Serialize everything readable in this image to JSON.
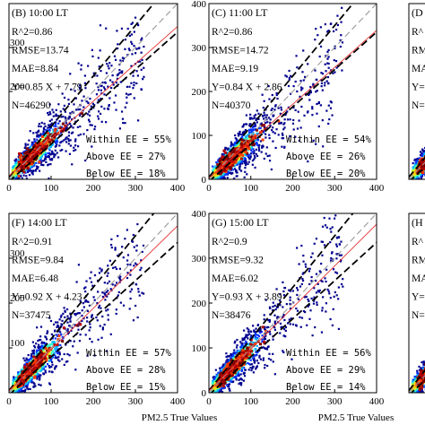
{
  "figure": {
    "bottom_xlabel": "PM2.5 True Values",
    "ee_colors": {
      "one_to_one": "#999999",
      "ee_lines": "#000000",
      "fit_line": "#e63232"
    },
    "density_colors": [
      "#00008f",
      "#0030ff",
      "#00b4ff",
      "#30ffcf",
      "#c8ff38",
      "#ffc800",
      "#ff3c00",
      "#b40000",
      "#7a0000"
    ]
  },
  "chart_data": [
    {
      "type": "scatter",
      "panel": "B",
      "title": "(B) 10:00 LT",
      "xlim": [
        0,
        400
      ],
      "ylim": [
        0,
        400
      ],
      "x_ticks": [
        "0",
        "100",
        "200",
        "300",
        "400"
      ],
      "y_ticks": [
        "200",
        "300"
      ],
      "stats": [
        "R^2=0.86",
        "RMSE=13.74",
        "MAE=8.84",
        "Y=0.85 X + 7.79",
        "N=46290"
      ],
      "ee_stats": [
        "Within EE = 55%",
        "Above EE = 27%",
        "Below EE = 18%"
      ],
      "fit": {
        "slope": 0.85,
        "intercept": 7.79
      }
    },
    {
      "type": "scatter",
      "panel": "C",
      "title": "(C) 11:00 LT",
      "xlim": [
        0,
        400
      ],
      "ylim": [
        0,
        400
      ],
      "x_ticks": [
        "0",
        "100",
        "200",
        "300",
        "400"
      ],
      "y_ticks": [
        "0",
        "100",
        "200",
        "300",
        "400"
      ],
      "stats": [
        "R^2=0.86",
        "RMSE=14.72",
        "MAE=9.19",
        "Y=0.84 X + 2.86",
        "N=40370"
      ],
      "ee_stats": [
        "Within EE = 54%",
        "Above EE = 26%",
        "Below EE = 20%"
      ],
      "fit": {
        "slope": 0.84,
        "intercept": 2.86
      }
    },
    {
      "type": "scatter",
      "panel": "F",
      "title": "(F) 14:00 LT",
      "xlim": [
        0,
        400
      ],
      "ylim": [
        0,
        400
      ],
      "x_ticks": [
        "0",
        "100",
        "200",
        "300",
        "400"
      ],
      "y_ticks": [
        "100",
        "200",
        "300"
      ],
      "stats": [
        "R^2=0.91",
        "RMSE=9.84",
        "MAE=6.48",
        "Y=0.92 X + 4.23",
        "N=37475"
      ],
      "ee_stats": [
        "Within EE = 57%",
        "Above EE = 28%",
        "Below EE = 15%"
      ],
      "fit": {
        "slope": 0.92,
        "intercept": 4.23
      }
    },
    {
      "type": "scatter",
      "panel": "G",
      "title": "(G) 15:00 LT",
      "xlim": [
        0,
        400
      ],
      "ylim": [
        0,
        400
      ],
      "x_ticks": [
        "0",
        "100",
        "200",
        "300",
        "400"
      ],
      "y_ticks": [
        "0",
        "100",
        "200",
        "300",
        "400"
      ],
      "stats": [
        "R^2=0.9",
        "RMSE=9.32",
        "MAE=6.02",
        "Y=0.93 X + 3.89",
        "N=38476"
      ],
      "ee_stats": [
        "Within EE = 56%",
        "Above EE = 29%",
        "Below EE = 14%"
      ],
      "fit": {
        "slope": 0.93,
        "intercept": 3.89
      }
    },
    {
      "type": "scatter",
      "panel": "D",
      "title": "(D",
      "xlim": [
        0,
        400
      ],
      "ylim": [
        0,
        400
      ],
      "stats": [
        "R^",
        "RM",
        "MA",
        "Y=",
        "N="
      ],
      "ee_stats": []
    },
    {
      "type": "scatter",
      "panel": "H",
      "title": "(H",
      "xlim": [
        0,
        400
      ],
      "ylim": [
        0,
        400
      ],
      "stats": [
        "R^",
        "RM",
        "MA",
        "Y=",
        "N="
      ],
      "ee_stats": []
    }
  ]
}
